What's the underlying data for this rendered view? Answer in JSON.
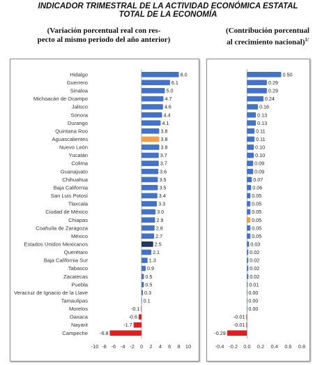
{
  "header": {
    "title_line1": "INDICADOR TRIMESTRAL DE LA ACTIVIDAD ECONÓMICA ESTATAL",
    "title_line2": "TOTAL DE LA ECONOMÍA",
    "left_subtitle_line1": "(Variación porcentual real con res-",
    "left_subtitle_line2": "pecto al mismo periodo del año anterior)",
    "right_subtitle_line1": "(Contribución porcentual",
    "right_subtitle_line2": "al crecimiento nacional)",
    "right_subtitle_note": "1/"
  },
  "colors": {
    "bar": "#4472c4",
    "highlight": "#f0a04a",
    "national": "#1f3864",
    "negative": "#e02020"
  },
  "chart_data": [
    {
      "type": "bar",
      "orientation": "horizontal",
      "title": "(Variación porcentual real con respecto al mismo periodo del año anterior)",
      "categories": [
        "Hidalgo",
        "Guerrero",
        "Sinaloa",
        "Michoacán de Ocampo",
        "Jalisco",
        "Sonora",
        "Durango",
        "Quintana Roo",
        "Aguascalientes",
        "Nuevo León",
        "Yucatán",
        "Colima",
        "Guanajuato",
        "Chihuahua",
        "Baja California",
        "San Luis Potosí",
        "Tlaxcala",
        "Ciudad de México",
        "Chiapas",
        "Coahuila de Zaragoza",
        "México",
        "Estados Unidos Mexicanos",
        "Querétaro",
        "Baja California Sur",
        "Tabasco",
        "Zacatecas",
        "Puebla",
        "Veracruz de Ignacio de la Llave",
        "Tamaulipas",
        "Morelos",
        "Oaxaca",
        "Nayarit",
        "Campeche"
      ],
      "values": [
        8.0,
        6.1,
        5.0,
        4.7,
        4.6,
        4.4,
        4.1,
        3.8,
        3.8,
        3.8,
        3.7,
        3.7,
        3.6,
        3.5,
        3.5,
        3.4,
        3.3,
        3.0,
        2.9,
        2.8,
        2.7,
        2.5,
        2.1,
        1.3,
        0.9,
        0.5,
        0.5,
        0.3,
        0.1,
        -0.1,
        -0.6,
        -1.7,
        -6.8
      ],
      "value_labels": [
        "8.0",
        "6.1",
        "5.0",
        "4.7",
        "4.6",
        "4.4",
        "4.1",
        "3.8",
        "3.8",
        "3.8",
        "3.7",
        "3.7",
        "3.6",
        "3.5",
        "3.5",
        "3.4",
        "3.3",
        "3.0",
        "2.9",
        "2.8",
        "2.7",
        "2.5",
        "2.1",
        "1.3",
        "0.9",
        "0.5",
        "0.5",
        "0.3",
        "0.1",
        "-0.1",
        "-0.6",
        "-1.7",
        "-6.8"
      ],
      "highlight": "Aguascalientes",
      "national": "Estados Unidos Mexicanos",
      "xlim": [
        -10,
        10
      ],
      "xticks": [
        "-10",
        "-8",
        "-6",
        "-4",
        "-2",
        "0",
        "2",
        "4",
        "6",
        "8",
        "10"
      ],
      "grid": false
    },
    {
      "type": "bar",
      "orientation": "horizontal",
      "title": "(Contribución porcentual al crecimiento nacional)",
      "values": [
        0.5,
        0.29,
        0.29,
        0.24,
        0.16,
        0.13,
        0.13,
        0.11,
        0.11,
        0.1,
        0.1,
        0.09,
        0.09,
        0.07,
        0.06,
        0.05,
        0.05,
        0.05,
        0.05,
        0.05,
        0.05,
        0.03,
        0.02,
        0.02,
        0.02,
        0.02,
        0.01,
        0.0,
        0.0,
        0.0,
        -0.01,
        -0.01,
        -0.29
      ],
      "value_labels": [
        "0.50",
        "0.29",
        "0.29",
        "0.24",
        "0.16",
        "0.13",
        "0.13",
        "0.11",
        "0.11",
        "0.10",
        "0.10",
        "0.09",
        "0.09",
        "0.07",
        "0.06",
        "0.05",
        "0.05",
        "0.05",
        "0.05",
        "0.05",
        "0.05",
        "0.03",
        "0.02",
        "0.02",
        "0.02",
        "0.02",
        "0.01",
        "0.00",
        "0.00",
        "0.00",
        "-0.01",
        "-0.01",
        "-0.29"
      ],
      "highlight_index": 18,
      "xlim": [
        -0.4,
        0.8
      ],
      "xticks": [
        "-0.4",
        "-0.2",
        "0.0",
        "0.2",
        "0.4",
        "0.6",
        "0.8"
      ],
      "grid": false
    }
  ]
}
